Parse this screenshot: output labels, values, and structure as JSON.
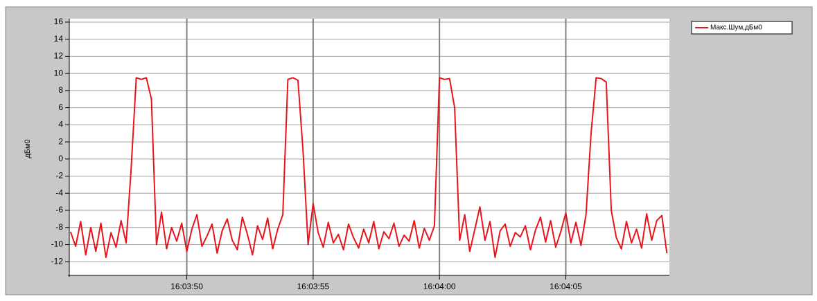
{
  "chart_data": {
    "type": "line",
    "y_label": "дБм0",
    "x": [
      57825.4,
      57825.6,
      57825.8,
      57826,
      57826.2,
      57826.4,
      57826.6,
      57826.8,
      57827,
      57827.2,
      57827.4,
      57827.6,
      57827.8,
      57828,
      57828.2,
      57828.4,
      57828.6,
      57828.8,
      57829,
      57829.2,
      57829.4,
      57829.6,
      57829.8,
      57830,
      57830.2,
      57830.4,
      57830.6,
      57830.8,
      57831,
      57831.2,
      57831.4,
      57831.6,
      57831.8,
      57832,
      57832.2,
      57832.4,
      57832.6,
      57832.8,
      57833,
      57833.2,
      57833.4,
      57833.6,
      57833.8,
      57834,
      57834.2,
      57834.4,
      57834.6,
      57834.8,
      57835,
      57835.2,
      57835.4,
      57835.6,
      57835.8,
      57836,
      57836.2,
      57836.4,
      57836.6,
      57836.8,
      57837,
      57837.2,
      57837.4,
      57837.6,
      57837.8,
      57838,
      57838.2,
      57838.4,
      57838.6,
      57838.8,
      57839,
      57839.2,
      57839.4,
      57839.6,
      57839.8,
      57840,
      57840.2,
      57840.4,
      57840.6,
      57840.8,
      57841,
      57841.2,
      57841.4,
      57841.6,
      57841.8,
      57842,
      57842.2,
      57842.4,
      57842.6,
      57842.8,
      57843,
      57843.2,
      57843.4,
      57843.6,
      57843.8,
      57844,
      57844.2,
      57844.4,
      57844.6,
      57844.8,
      57845,
      57845.2,
      57845.4,
      57845.6,
      57845.8,
      57846,
      57846.2,
      57846.4,
      57846.6,
      57846.8,
      57847,
      57847.2,
      57847.4,
      57847.6,
      57847.8,
      57848,
      57848.2,
      57848.4,
      57848.6,
      57848.8,
      57849
    ],
    "series": [
      {
        "name": "Макс.Шум,дБм0",
        "color": "#e8141c",
        "values": [
          -8.5,
          -10.2,
          -7.3,
          -11.2,
          -8,
          -10.8,
          -7.5,
          -11.5,
          -8.6,
          -10.3,
          -7.2,
          -9.8,
          -1,
          9.5,
          9.3,
          9.5,
          7,
          -10,
          -6.2,
          -10.5,
          -8,
          -9.6,
          -7.5,
          -10.8,
          -8.2,
          -6.5,
          -10.2,
          -9,
          -7.6,
          -11,
          -8.4,
          -7,
          -9.5,
          -10.6,
          -6.8,
          -8.8,
          -11.2,
          -7.8,
          -9.4,
          -6.9,
          -10.5,
          -8.2,
          -6.5,
          9.3,
          9.5,
          9.2,
          1,
          -10,
          -5.2,
          -8.6,
          -10.3,
          -7.4,
          -9.8,
          -8.8,
          -10.6,
          -7.6,
          -9.2,
          -10.4,
          -8.2,
          -9.8,
          -7.3,
          -10.5,
          -8.5,
          -9.3,
          -7.5,
          -10.2,
          -8.9,
          -9.6,
          -7.2,
          -10.4,
          -8.1,
          -9.5,
          -7.8,
          9.5,
          9.3,
          9.4,
          6,
          -9.5,
          -6.5,
          -10.8,
          -8.2,
          -5.6,
          -9.5,
          -7.3,
          -11.5,
          -8.4,
          -7.6,
          -10.2,
          -8.6,
          -9.1,
          -7.8,
          -10.6,
          -8.3,
          -6.8,
          -9.7,
          -7.2,
          -10.3,
          -8.5,
          -6.3,
          -9.8,
          -7.4,
          -10.1,
          -6.5,
          3,
          9.5,
          9.4,
          9,
          -6,
          -9.2,
          -10.5,
          -7.3,
          -9.8,
          -8.2,
          -10.4,
          -6.4,
          -9.5,
          -7.2,
          -6.6,
          -11
        ]
      }
    ],
    "xlim": [
      57825.35,
      57849.1
    ],
    "xticks": [
      {
        "value": 57830,
        "label": "16:03:50"
      },
      {
        "value": 57835,
        "label": "16:03:55"
      },
      {
        "value": 57840,
        "label": "16:04:00"
      },
      {
        "value": 57845,
        "label": "16:04:05"
      }
    ],
    "ylim": [
      -13.6,
      16.4
    ],
    "yticks": [
      -12,
      -10,
      -8,
      -6,
      -4,
      -2,
      0,
      2,
      4,
      6,
      8,
      10,
      12,
      14,
      16
    ],
    "grid": true,
    "legend": "top-right"
  }
}
